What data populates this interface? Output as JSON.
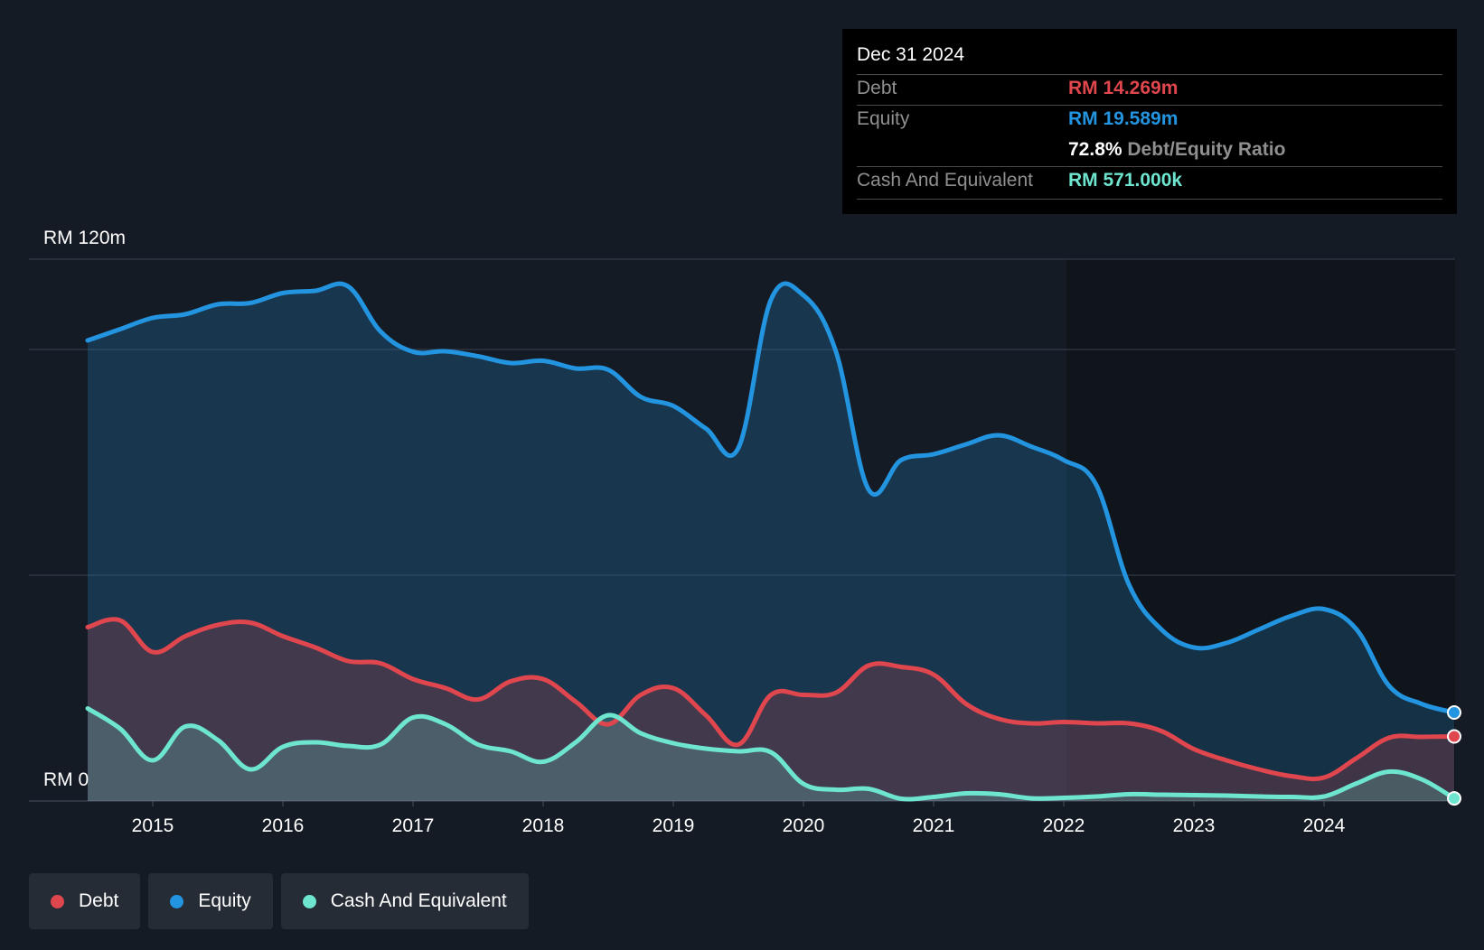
{
  "tooltip": {
    "date": "Dec 31 2024",
    "debt_label": "Debt",
    "debt_value": "RM 14.269m",
    "equity_label": "Equity",
    "equity_value": "RM 19.589m",
    "ratio_value": "72.8%",
    "ratio_label": "Debt/Equity Ratio",
    "cash_label": "Cash And Equivalent",
    "cash_value": "RM 571.000k"
  },
  "legend": [
    {
      "label": "Debt",
      "color": "#e0464e"
    },
    {
      "label": "Equity",
      "color": "#2394df"
    },
    {
      "label": "Cash And Equivalent",
      "color": "#6de5cf"
    }
  ],
  "colors": {
    "debt": "#e0464e",
    "equity": "#2394df",
    "cash": "#6de5cf",
    "background": "#151b24",
    "grid": "#3a4150"
  },
  "chart_data": {
    "type": "area",
    "title": "",
    "y_top_label": "RM 120m",
    "y_bottom_label": "RM 0",
    "ylim": [
      0,
      120
    ],
    "xlim": [
      2014.5,
      2025.0
    ],
    "grid_values": [
      0,
      50,
      100,
      120
    ],
    "x_ticks": [
      {
        "value": 2015,
        "label": "2015"
      },
      {
        "value": 2016,
        "label": "2016"
      },
      {
        "value": 2017,
        "label": "2017"
      },
      {
        "value": 2018,
        "label": "2018"
      },
      {
        "value": 2019,
        "label": "2019"
      },
      {
        "value": 2020,
        "label": "2020"
      },
      {
        "value": 2021,
        "label": "2021"
      },
      {
        "value": 2022,
        "label": "2022"
      },
      {
        "value": 2023,
        "label": "2023"
      },
      {
        "value": 2024,
        "label": "2024"
      }
    ],
    "series": [
      {
        "name": "Equity",
        "key": "equity",
        "x": [
          2014.5,
          2014.75,
          2015.0,
          2015.25,
          2015.5,
          2015.75,
          2016.0,
          2016.25,
          2016.5,
          2016.75,
          2017.0,
          2017.25,
          2017.5,
          2017.75,
          2018.0,
          2018.25,
          2018.5,
          2018.75,
          2019.0,
          2019.25,
          2019.5,
          2019.75,
          2020.0,
          2020.25,
          2020.5,
          2020.75,
          2021.0,
          2021.25,
          2021.5,
          2021.75,
          2022.0,
          2022.25,
          2022.5,
          2022.75,
          2023.0,
          2023.25,
          2023.5,
          2023.75,
          2024.0,
          2024.25,
          2024.5,
          2024.75,
          2025.0
        ],
        "values": [
          102,
          104.5,
          107,
          107.8,
          110,
          110.3,
          112.5,
          113,
          114,
          104,
          99.5,
          99.6,
          98.5,
          97,
          97.5,
          95.8,
          95.5,
          89.5,
          87.5,
          82.5,
          78.2,
          111,
          112,
          99.5,
          69,
          75.5,
          76.8,
          79,
          81,
          78.5,
          75.5,
          70,
          48,
          38,
          34,
          35,
          38,
          41,
          42.5,
          38,
          25.5,
          21.5,
          19.6
        ]
      },
      {
        "name": "Debt",
        "key": "debt",
        "x": [
          2014.5,
          2014.75,
          2015.0,
          2015.25,
          2015.5,
          2015.75,
          2016.0,
          2016.25,
          2016.5,
          2016.75,
          2017.0,
          2017.25,
          2017.5,
          2017.75,
          2018.0,
          2018.25,
          2018.5,
          2018.75,
          2019.0,
          2019.25,
          2019.5,
          2019.75,
          2020.0,
          2020.25,
          2020.5,
          2020.75,
          2021.0,
          2021.25,
          2021.5,
          2021.75,
          2022.0,
          2022.25,
          2022.5,
          2022.75,
          2023.0,
          2023.25,
          2023.5,
          2023.75,
          2024.0,
          2024.25,
          2024.5,
          2024.75,
          2025.0
        ],
        "values": [
          38.5,
          40,
          33,
          36.5,
          39,
          39.5,
          36.5,
          34,
          31,
          30.5,
          27,
          25,
          22.5,
          26.5,
          27,
          22,
          17,
          23.5,
          25,
          19,
          12.5,
          23.5,
          23.5,
          24,
          30,
          29.7,
          28,
          21.5,
          18.2,
          17.2,
          17.5,
          17.2,
          17.2,
          15.5,
          11.5,
          9,
          7,
          5.5,
          5.2,
          9.5,
          14,
          14.2,
          14.3
        ]
      },
      {
        "name": "Cash And Equivalent",
        "key": "cash",
        "x": [
          2014.5,
          2014.75,
          2015.0,
          2015.25,
          2015.5,
          2015.75,
          2016.0,
          2016.25,
          2016.5,
          2016.75,
          2017.0,
          2017.25,
          2017.5,
          2017.75,
          2018.0,
          2018.25,
          2018.5,
          2018.75,
          2019.0,
          2019.25,
          2019.5,
          2019.75,
          2020.0,
          2020.25,
          2020.5,
          2020.75,
          2021.0,
          2021.25,
          2021.5,
          2021.75,
          2022.0,
          2022.25,
          2022.5,
          2022.75,
          2023.0,
          2023.25,
          2023.5,
          2023.75,
          2024.0,
          2024.25,
          2024.5,
          2024.75,
          2025.0
        ],
        "values": [
          20.5,
          16,
          9,
          16.5,
          13.5,
          7,
          12,
          13,
          12.2,
          12.5,
          18.5,
          17,
          12.5,
          11,
          8.7,
          13,
          19,
          15,
          12.8,
          11.6,
          11,
          10.8,
          3.8,
          2.5,
          2.7,
          0.5,
          0.9,
          1.7,
          1.5,
          0.6,
          0.7,
          1,
          1.5,
          1.4,
          1.3,
          1.2,
          1,
          0.9,
          1,
          3.9,
          6.5,
          4.8,
          0.571
        ]
      }
    ]
  }
}
